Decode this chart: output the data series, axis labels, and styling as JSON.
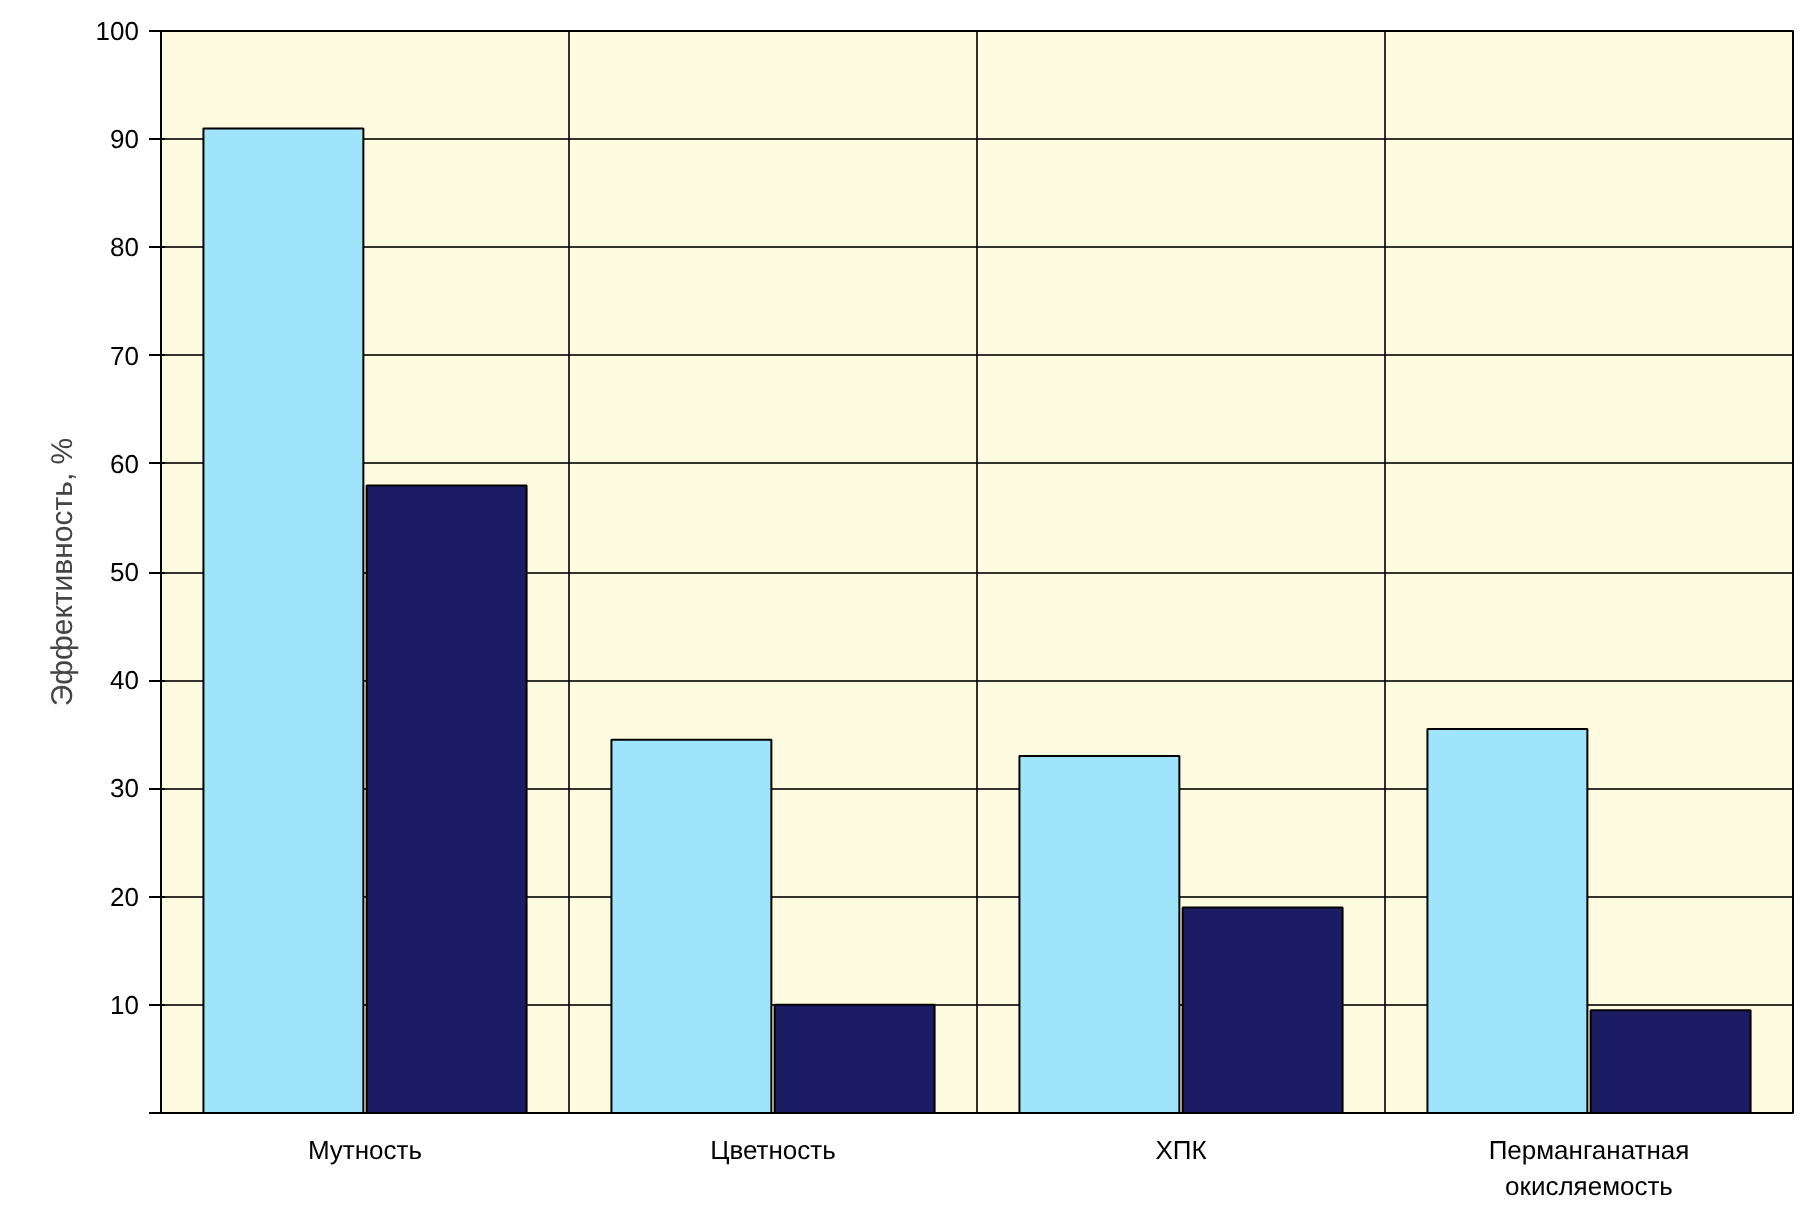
{
  "chart_data": {
    "type": "bar",
    "ylabel": "Эффективность, %",
    "categories": [
      "Мутность",
      "Цветность",
      "ХПК",
      "Перманганатная\nокисляемость"
    ],
    "series": [
      {
        "color": "#9fe4fb",
        "values": [
          91,
          34.5,
          33,
          35.5
        ]
      },
      {
        "color": "#1c1c64",
        "values": [
          58,
          10,
          19,
          9.5
        ]
      }
    ],
    "ylim": [
      0,
      100
    ],
    "yticks": [
      {
        "value": 0,
        "label": null
      },
      10,
      20,
      30,
      40,
      50,
      60,
      70,
      80,
      90,
      100
    ],
    "grid": true
  }
}
